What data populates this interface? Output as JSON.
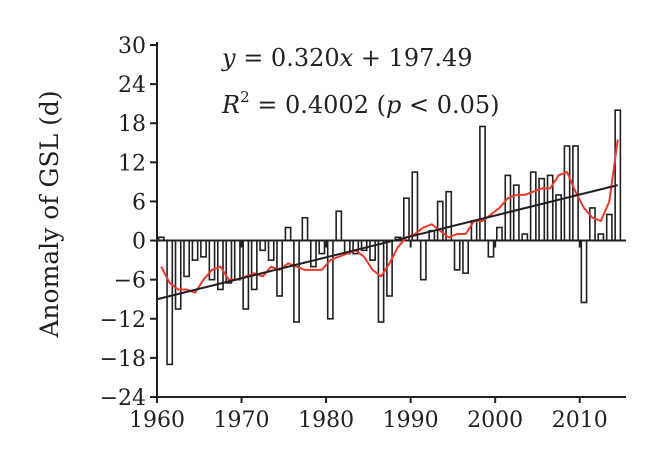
{
  "chart_data": {
    "type": "bar",
    "title": "",
    "xlabel": "",
    "ylabel": "Anomaly of GSL (d)",
    "xlim": [
      1960,
      2015
    ],
    "ylim": [
      -24,
      30
    ],
    "x_ticks": [
      "1960",
      "1970",
      "1980",
      "1990",
      "2000",
      "2010"
    ],
    "y_ticks": [
      "30",
      "24",
      "18",
      "12",
      "6",
      "0",
      "−6",
      "−12",
      "−18",
      "−24"
    ],
    "grid": false,
    "legend": "none",
    "annotations": {
      "equation": {
        "y": "y",
        "eq": " = 0.320",
        "x": "x",
        "rest": " + 197.49"
      },
      "r2": {
        "R": "R",
        "sup": "2",
        "value": " = 0.4002 (",
        "p": "p",
        "rest": " < 0.05)"
      }
    },
    "series": [
      {
        "type": "bar",
        "x": [
          1960,
          1961,
          1962,
          1963,
          1964,
          1965,
          1966,
          1967,
          1968,
          1969,
          1970,
          1971,
          1972,
          1973,
          1974,
          1975,
          1976,
          1977,
          1978,
          1979,
          1980,
          1981,
          1982,
          1983,
          1984,
          1985,
          1986,
          1987,
          1988,
          1989,
          1990,
          1991,
          1992,
          1993,
          1994,
          1995,
          1996,
          1997,
          1998,
          1999,
          2000,
          2001,
          2002,
          2003,
          2004,
          2005,
          2006,
          2007,
          2008,
          2009,
          2010,
          2011,
          2012,
          2013,
          2014
        ],
        "values": [
          0.5,
          -19,
          -10.5,
          -5.5,
          -3,
          -2.5,
          -6,
          -7.5,
          -6.5,
          -6,
          -10.5,
          -7.5,
          -1.5,
          -3,
          -8.5,
          2,
          -12.5,
          3.5,
          -4,
          -2,
          -12,
          4.5,
          -2,
          -2,
          -1.5,
          -3,
          -12.5,
          -8.5,
          0.5,
          6.5,
          10.5,
          -6,
          1.5,
          6,
          7.5,
          -4.5,
          -5,
          3,
          17.5,
          -2.5,
          2,
          10,
          8.5,
          1,
          10.5,
          9.5,
          10,
          7,
          14.5,
          14.5,
          -9.5,
          5,
          1,
          4,
          20
        ],
        "color": "#231f20"
      },
      {
        "type": "line",
        "x": [
          1960,
          1961,
          1962,
          1963,
          1964,
          1965,
          1966,
          1967,
          1968,
          1969,
          1970,
          1971,
          1972,
          1973,
          1974,
          1975,
          1976,
          1977,
          1978,
          1979,
          1980,
          1981,
          1982,
          1983,
          1984,
          1985,
          1986,
          1987,
          1988,
          1989,
          1990,
          1991,
          1992,
          1993,
          1994,
          1995,
          1996,
          1997,
          1998,
          1999,
          2000,
          2001,
          2002,
          2003,
          2004,
          2005,
          2006,
          2007,
          2008,
          2009,
          2010,
          2011,
          2012,
          2013,
          2014
        ],
        "values": [
          -4,
          -6.5,
          -7.5,
          -7.5,
          -8,
          -6,
          -4.5,
          -4,
          -6,
          -6,
          -5.5,
          -5,
          -5.5,
          -4,
          -4.5,
          -3.5,
          -4,
          -4.5,
          -4.5,
          -4.5,
          -3,
          -2.5,
          -2,
          -1.5,
          -2.5,
          -4.5,
          -5.5,
          -3.5,
          -1,
          0.5,
          1,
          2,
          2.5,
          1.5,
          0.5,
          1,
          1,
          3,
          3,
          4,
          5,
          6.5,
          7,
          7,
          7.5,
          8,
          8,
          10,
          10.5,
          7.5,
          5,
          3.5,
          3,
          6,
          15.5
        ],
        "color": "#ee3a2c"
      },
      {
        "type": "line",
        "x": [
          1960,
          2014
        ],
        "values": [
          -9,
          8.5
        ],
        "color": "#231f20"
      }
    ]
  }
}
